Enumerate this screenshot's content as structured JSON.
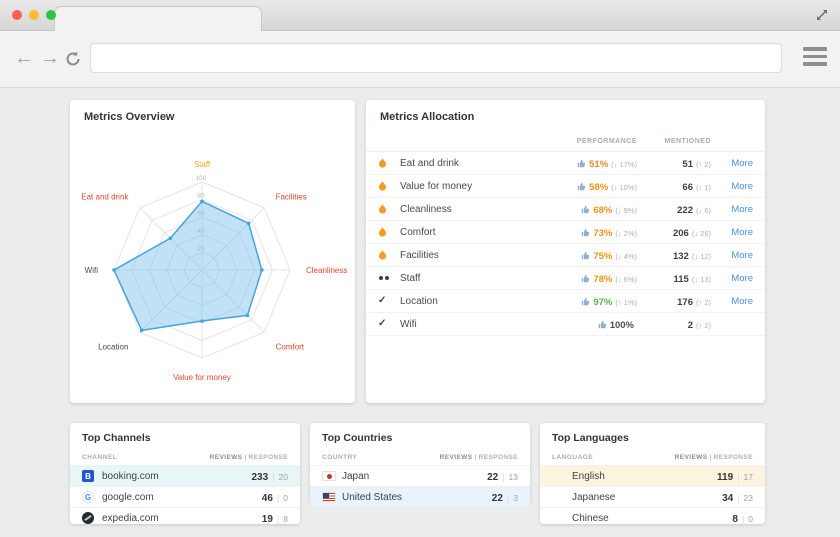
{
  "ui": {
    "divider": "|"
  },
  "window": {
    "url_value": "",
    "traffic": [
      "background:#ff5f57",
      "background:#febc2e",
      "background:#2ac840"
    ],
    "icons": {
      "back": "←",
      "forward": "→",
      "check": "✓",
      "booking_letter": "B",
      "google_letter": "G"
    }
  },
  "overview": {
    "title": "Metrics Overview"
  },
  "allocation": {
    "title": "Metrics Allocation",
    "columns": {
      "performance": "PERFORMANCE",
      "mentioned": "MENTIONED"
    },
    "rows": [
      {
        "label": "Eat and drink",
        "perf": "51%",
        "perf_style": "color:#ee8427",
        "perf_delta": "(↓ 17%)",
        "mentioned": "51",
        "mentioned_delta": "(↑ 2)",
        "more": "More"
      },
      {
        "label": "Value for money",
        "perf": "58%",
        "perf_style": "color:#f0930f",
        "perf_delta": "(↓ 10%)",
        "mentioned": "66",
        "mentioned_delta": "(↑ 1)",
        "more": "More"
      },
      {
        "label": "Cleanliness",
        "perf": "68%",
        "perf_style": "color:#f0930f",
        "perf_delta": "(↓ 9%)",
        "mentioned": "222",
        "mentioned_delta": "(↓ 6)",
        "more": "More"
      },
      {
        "label": "Comfort",
        "perf": "73%",
        "perf_style": "color:#f0930f",
        "perf_delta": "(↓ 2%)",
        "mentioned": "206",
        "mentioned_delta": "(↓ 26)",
        "more": "More"
      },
      {
        "label": "Facilities",
        "perf": "75%",
        "perf_style": "color:#f0930f",
        "perf_delta": "(↓ 4%)",
        "mentioned": "132",
        "mentioned_delta": "(↓ 12)",
        "more": "More"
      },
      {
        "label": "Staff",
        "perf": "78%",
        "perf_style": "color:#f0930f",
        "perf_delta": "(↓ 6%)",
        "mentioned": "115",
        "mentioned_delta": "(↓ 13)",
        "more": "More"
      },
      {
        "label": "Location",
        "perf": "97%",
        "perf_style": "color:#5fae4f",
        "perf_delta": "(↑ 1%)",
        "mentioned": "176",
        "mentioned_delta": "(↑ 2)",
        "more": "More"
      },
      {
        "label": "Wifi",
        "perf": "100%",
        "perf_style": "color:#4a4f55",
        "perf_delta": "",
        "mentioned": "2",
        "mentioned_delta": "(↑ 2)"
      }
    ]
  },
  "channels": {
    "title": "Top Channels",
    "columns": {
      "left": "CHANNEL",
      "reviews": "REVIEWS",
      "response": "RESPONSE"
    },
    "rows": [
      {
        "name": "booking.com",
        "reviews": "233",
        "response": "20",
        "row_style": "background:#e9f6f8"
      },
      {
        "name": "google.com",
        "reviews": "46",
        "response": "0"
      },
      {
        "name": "expedia.com",
        "reviews": "19",
        "response": "8"
      }
    ]
  },
  "countries": {
    "title": "Top Countries",
    "columns": {
      "left": "COUNTRY",
      "reviews": "REVIEWS",
      "response": "RESPONSE"
    },
    "rows": [
      {
        "name": "Japan",
        "reviews": "22",
        "response": "13"
      },
      {
        "name": "United States",
        "reviews": "22",
        "response": "3",
        "row_style": "background:#eaf2fb"
      }
    ]
  },
  "languages": {
    "title": "Top Languages",
    "columns": {
      "left": "LANGUAGE",
      "reviews": "REVIEWS",
      "response": "RESPONSE"
    },
    "rows": [
      {
        "name": "English",
        "reviews": "119",
        "response": "17",
        "row_style": "background:#fcf4df"
      },
      {
        "name": "Japanese",
        "reviews": "34",
        "response": "23"
      },
      {
        "name": "Chinese",
        "reviews": "8",
        "response": "0"
      }
    ]
  },
  "chart_data": {
    "type": "radar",
    "title": "Metrics Overview",
    "axes": [
      "Staff",
      "Facilities",
      "Cleanliness",
      "Comfort",
      "Value for money",
      "Location",
      "Wifi",
      "Eat and drink"
    ],
    "values": [
      78,
      75,
      68,
      73,
      58,
      97,
      100,
      51
    ],
    "max": 100,
    "ticks": [
      20,
      40,
      60,
      80,
      100
    ],
    "axis_colors": [
      "#f5a623",
      "#df452e",
      "#df452e",
      "#df452e",
      "#df452e",
      "#4a4a4a",
      "#4a4a4a",
      "#df452e"
    ],
    "fill": "rgba(118,191,236,0.45)",
    "stroke": "#45a3dd",
    "grid": "#e4e4e4",
    "legend": "none"
  }
}
